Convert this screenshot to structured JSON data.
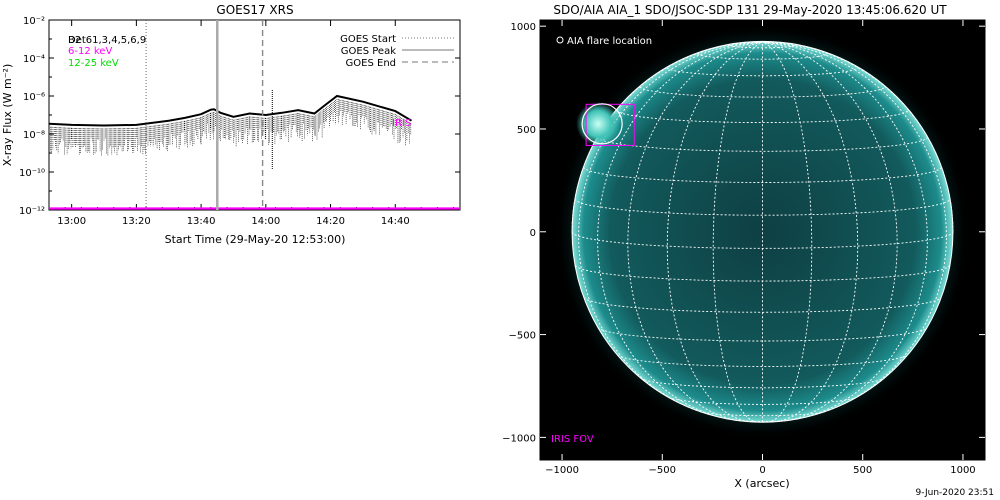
{
  "chart_data": [
    {
      "type": "line",
      "title": "GOES17 XRS",
      "xlabel": "Start Time (29-May-20 12:53:00)",
      "ylabel": "X-ray Flux (W m⁻²)",
      "xlim": [
        "12:53",
        "15:00"
      ],
      "ylim": [
        1e-12,
        0.01
      ],
      "yscale": "log",
      "x_ticks": [
        "13:00",
        "13:20",
        "13:40",
        "14:00",
        "14:20",
        "14:40"
      ],
      "y_ticks": [
        "10⁻¹²",
        "10⁻¹⁰",
        "10⁻⁸",
        "10⁻⁶",
        "10⁻⁴",
        "10⁻²"
      ],
      "legend_left": [
        {
          "name": "B2",
          "color": "#000000"
        },
        {
          "name": "Det61,3,4,5,6,9",
          "color": "#000000"
        },
        {
          "name": "6-12 keV",
          "color": "#ff00ff"
        },
        {
          "name": "12-25 keV",
          "color": "#00dd00"
        }
      ],
      "legend_right": [
        {
          "name": "GOES Start",
          "style": "dotted"
        },
        {
          "name": "GOES Peak",
          "style": "solid"
        },
        {
          "name": "GOES End",
          "style": "dashed"
        }
      ],
      "annotation": "IRIS",
      "markers": {
        "goes_start": "13:23",
        "goes_peak": "13:45",
        "goes_end": "13:59",
        "extra_dotted": "14:02"
      },
      "series": [
        {
          "name": "B2",
          "color": "#000000",
          "x": [
            "12:53",
            "13:00",
            "13:10",
            "13:20",
            "13:30",
            "13:35",
            "13:40",
            "13:43",
            "13:44",
            "13:46",
            "13:50",
            "13:55",
            "14:00",
            "14:05",
            "14:10",
            "14:15",
            "14:18",
            "14:22",
            "14:30",
            "14:40",
            "14:45"
          ],
          "y": [
            3.5e-08,
            3e-08,
            2.8e-08,
            3e-08,
            5e-08,
            7e-08,
            1.1e-07,
            1.9e-07,
            2e-07,
            1.3e-07,
            8e-08,
            1.2e-07,
            1e-07,
            1.3e-07,
            1.8e-07,
            1.2e-07,
            3e-07,
            1e-06,
            5e-07,
            1.6e-07,
            5e-08
          ]
        },
        {
          "name": "6-12 keV",
          "color": "#ff00ff",
          "x": [
            "12:53",
            "15:00"
          ],
          "y": [
            1.2e-12,
            1.2e-12
          ]
        }
      ]
    },
    {
      "type": "scatter",
      "title": "SDO/AIA AIA_1 SDO/JSOC-SDP 131 29-May-2020 13:45:06.620 UT",
      "xlabel": "X (arcsec)",
      "ylabel": "",
      "xlim": [
        -1110,
        1110
      ],
      "ylim": [
        -1110,
        1030
      ],
      "x_ticks": [
        -1000,
        -500,
        0,
        500,
        1000
      ],
      "y_ticks": [
        -1000,
        -500,
        0,
        500,
        1000
      ],
      "legend": [
        {
          "name": "AIA flare location",
          "marker": "circle"
        }
      ],
      "annotation": "IRIS FOV",
      "solar_radius_arcsec": 950,
      "flare_location": {
        "x": -800,
        "y": 525
      },
      "iris_fov": {
        "x": [
          -880,
          -640
        ],
        "y": [
          420,
          620
        ]
      },
      "image_color": "#0c8b8b"
    }
  ],
  "footer": "9-Jun-2020 23:51"
}
